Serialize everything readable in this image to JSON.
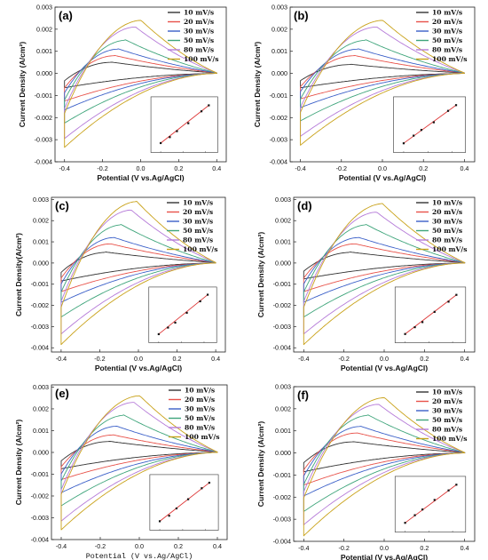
{
  "chart_data": [
    {
      "type": "line",
      "panel_label": "(a)",
      "xlabel": "Potential (V vs.Ag/AgCl)",
      "ylabel": "Current Density (A/cm²)",
      "xlim": [
        -0.45,
        0.45
      ],
      "ylim": [
        -0.004,
        0.003
      ],
      "xticks": [
        "-0.4",
        "-0.2",
        "0.0",
        "0.2",
        "0.4"
      ],
      "yticks": [
        "-0.004",
        "-0.003",
        "-0.002",
        "-0.001",
        "0.000",
        "0.001",
        "0.002",
        "0.003"
      ],
      "legend_position": "top-right",
      "series": [
        {
          "name": "10  mV/s",
          "color": "#333333",
          "anodic_peak": [
            -0.16,
            0.0005
          ],
          "cathodic_min": -0.0006
        },
        {
          "name": "20  mV/s",
          "color": "#e8524a",
          "anodic_peak": [
            -0.14,
            0.0008
          ],
          "cathodic_min": -0.0012
        },
        {
          "name": "30  mV/s",
          "color": "#3a5fc8",
          "anodic_peak": [
            -0.12,
            0.0011
          ],
          "cathodic_min": -0.0016
        },
        {
          "name": "50  mV/s",
          "color": "#3fa57b",
          "anodic_peak": [
            -0.08,
            0.0015
          ],
          "cathodic_min": -0.0022
        },
        {
          "name": "80  mV/s",
          "color": "#b57ad8",
          "anodic_peak": [
            -0.03,
            0.0021
          ],
          "cathodic_min": -0.0029
        },
        {
          "name": "100  mV/s",
          "color": "#c9a21a",
          "anodic_peak": [
            0.0,
            0.0024
          ],
          "cathodic_min": -0.0033
        }
      ],
      "inset": {
        "type": "scatter-line",
        "x": [
          0.1,
          0.141,
          0.173,
          0.224,
          0.283,
          0.316
        ],
        "y": [
          0.0005,
          0.0008,
          0.0011,
          0.0015,
          0.0021,
          0.0024
        ]
      }
    },
    {
      "type": "line",
      "panel_label": "(b)",
      "xlabel": "Potential (V vs.Ag/AgCl)",
      "ylabel": "Current Density (A/cm²)",
      "xlim": [
        -0.45,
        0.45
      ],
      "ylim": [
        -0.004,
        0.003
      ],
      "xticks": [
        "-0.4",
        "-0.2",
        "0.0",
        "0.2",
        "0.4"
      ],
      "yticks": [
        "-0.004",
        "-0.003",
        "-0.002",
        "-0.001",
        "0.000",
        "0.001",
        "0.002",
        "0.003"
      ],
      "legend_position": "top-right",
      "series": [
        {
          "name": "10  mV/s",
          "color": "#333333",
          "anodic_peak": [
            -0.16,
            0.0004
          ],
          "cathodic_min": -0.0006
        },
        {
          "name": "20  mV/s",
          "color": "#e8524a",
          "anodic_peak": [
            -0.14,
            0.0008
          ],
          "cathodic_min": -0.0011
        },
        {
          "name": "30  mV/s",
          "color": "#3a5fc8",
          "anodic_peak": [
            -0.12,
            0.0011
          ],
          "cathodic_min": -0.0015
        },
        {
          "name": "50  mV/s",
          "color": "#3fa57b",
          "anodic_peak": [
            -0.08,
            0.0015
          ],
          "cathodic_min": -0.0021
        },
        {
          "name": "80  mV/s",
          "color": "#b57ad8",
          "anodic_peak": [
            -0.03,
            0.0021
          ],
          "cathodic_min": -0.0028
        },
        {
          "name": "100  mV/s",
          "color": "#c9a21a",
          "anodic_peak": [
            0.0,
            0.0024
          ],
          "cathodic_min": -0.0032
        }
      ],
      "inset": {
        "type": "scatter-line",
        "x": [
          0.1,
          0.141,
          0.173,
          0.224,
          0.283,
          0.316
        ],
        "y": [
          0.0004,
          0.0008,
          0.0011,
          0.0015,
          0.0021,
          0.0024
        ]
      }
    },
    {
      "type": "line",
      "panel_label": "(c)",
      "xlabel": "Potential (V vs.Ag/AgCl)",
      "ylabel": "Current Density(A/cm²)",
      "xlim": [
        -0.45,
        0.45
      ],
      "ylim": [
        -0.0042,
        0.0031
      ],
      "xticks": [
        "-0.4",
        "-0.2",
        "0.0",
        "0.2",
        "0.4"
      ],
      "yticks": [
        "-0.004",
        "-0.003",
        "-0.002",
        "-0.001",
        "0.000",
        "0.001",
        "0.002",
        "0.003"
      ],
      "legend_position": "top-right",
      "series": [
        {
          "name": "10  mV/s",
          "color": "#333333",
          "anodic_peak": [
            -0.17,
            0.0005
          ],
          "cathodic_min": -0.0008
        },
        {
          "name": "20  mV/s",
          "color": "#e8524a",
          "anodic_peak": [
            -0.15,
            0.0009
          ],
          "cathodic_min": -0.0013
        },
        {
          "name": "30  mV/s",
          "color": "#3a5fc8",
          "anodic_peak": [
            -0.13,
            0.0012
          ],
          "cathodic_min": -0.0018
        },
        {
          "name": "50  mV/s",
          "color": "#3fa57b",
          "anodic_peak": [
            -0.09,
            0.0018
          ],
          "cathodic_min": -0.0025
        },
        {
          "name": "80  mV/s",
          "color": "#b57ad8",
          "anodic_peak": [
            -0.04,
            0.0025
          ],
          "cathodic_min": -0.0033
        },
        {
          "name": "100  mV/s",
          "color": "#c9a21a",
          "anodic_peak": [
            -0.01,
            0.0029
          ],
          "cathodic_min": -0.0038
        }
      ],
      "inset": {
        "type": "scatter-line",
        "x": [
          0.1,
          0.141,
          0.173,
          0.224,
          0.283,
          0.316
        ],
        "y": [
          0.0005,
          0.0009,
          0.0012,
          0.0018,
          0.0025,
          0.0029
        ]
      }
    },
    {
      "type": "line",
      "panel_label": "(d)",
      "xlabel": "Potential (V vs.Ag/AgCl)",
      "ylabel": "Current Density (A/cm²)",
      "xlim": [
        -0.45,
        0.45
      ],
      "ylim": [
        -0.0042,
        0.0031
      ],
      "xticks": [
        "-0.4",
        "-0.2",
        "0.0",
        "0.2",
        "0.4"
      ],
      "yticks": [
        "-0.004",
        "-0.003",
        "-0.002",
        "-0.001",
        "0.000",
        "0.001",
        "0.002",
        "0.003"
      ],
      "legend_position": "top-right",
      "series": [
        {
          "name": "10  mV/s",
          "color": "#333333",
          "anodic_peak": [
            -0.17,
            0.0005
          ],
          "cathodic_min": -0.0007
        },
        {
          "name": "20  mV/s",
          "color": "#e8524a",
          "anodic_peak": [
            -0.15,
            0.0009
          ],
          "cathodic_min": -0.0013
        },
        {
          "name": "30  mV/s",
          "color": "#3a5fc8",
          "anodic_peak": [
            -0.13,
            0.0012
          ],
          "cathodic_min": -0.0018
        },
        {
          "name": "50  mV/s",
          "color": "#3fa57b",
          "anodic_peak": [
            -0.09,
            0.0018
          ],
          "cathodic_min": -0.0025
        },
        {
          "name": "80  mV/s",
          "color": "#b57ad8",
          "anodic_peak": [
            -0.04,
            0.0024
          ],
          "cathodic_min": -0.0033
        },
        {
          "name": "100  mV/s",
          "color": "#c9a21a",
          "anodic_peak": [
            -0.01,
            0.0028
          ],
          "cathodic_min": -0.0038
        }
      ],
      "inset": {
        "type": "scatter-line",
        "x": [
          0.1,
          0.141,
          0.173,
          0.224,
          0.283,
          0.316
        ],
        "y": [
          0.0005,
          0.0009,
          0.0012,
          0.0018,
          0.0024,
          0.0028
        ]
      }
    },
    {
      "type": "line",
      "panel_label": "(e)",
      "xlabel": "Potential (V vs.Ag/AgCl)",
      "ylabel": "Current Density (A/cm²)",
      "xlim": [
        -0.45,
        0.45
      ],
      "ylim": [
        -0.004,
        0.0031
      ],
      "xticks": [
        "-0.4",
        "-0.2",
        "0.0",
        "0.2",
        "0.4"
      ],
      "yticks": [
        "-0.004",
        "-0.003",
        "-0.002",
        "-0.001",
        "0.000",
        "0.001",
        "0.002",
        "0.003"
      ],
      "legend_position": "top-right",
      "series": [
        {
          "name": "10  mV/s",
          "color": "#333333",
          "anodic_peak": [
            -0.16,
            0.0005
          ],
          "cathodic_min": -0.0007
        },
        {
          "name": "20  mV/s",
          "color": "#e8524a",
          "anodic_peak": [
            -0.14,
            0.0008
          ],
          "cathodic_min": -0.0012
        },
        {
          "name": "30  mV/s",
          "color": "#3a5fc8",
          "anodic_peak": [
            -0.12,
            0.0012
          ],
          "cathodic_min": -0.0018
        },
        {
          "name": "50  mV/s",
          "color": "#3fa57b",
          "anodic_peak": [
            -0.08,
            0.0017
          ],
          "cathodic_min": -0.0024
        },
        {
          "name": "80  mV/s",
          "color": "#b57ad8",
          "anodic_peak": [
            -0.03,
            0.0023
          ],
          "cathodic_min": -0.0031
        },
        {
          "name": "100  mV/s",
          "color": "#c9a21a",
          "anodic_peak": [
            0.0,
            0.0026
          ],
          "cathodic_min": -0.0035
        }
      ],
      "inset": {
        "type": "scatter-line",
        "x": [
          0.1,
          0.141,
          0.173,
          0.224,
          0.283,
          0.316
        ],
        "y": [
          0.0005,
          0.0008,
          0.0012,
          0.0017,
          0.0023,
          0.0026
        ]
      }
    },
    {
      "type": "line",
      "panel_label": "(f)",
      "xlabel": "Potential (V vs.Ag/AgCl)",
      "ylabel": "Current Density (A/cm²)",
      "xlim": [
        -0.45,
        0.45
      ],
      "ylim": [
        -0.004,
        0.003
      ],
      "xticks": [
        "-0.4",
        "-0.2",
        "0.0",
        "0.2",
        "0.4"
      ],
      "yticks": [
        "-0.004",
        "-0.003",
        "-0.002",
        "-0.001",
        "0.000",
        "0.001",
        "0.002",
        "0.003"
      ],
      "legend_position": "top-right",
      "series": [
        {
          "name": "10  mV/s",
          "color": "#333333",
          "anodic_peak": [
            -0.16,
            0.0005
          ],
          "cathodic_min": -0.0008
        },
        {
          "name": "20  mV/s",
          "color": "#e8524a",
          "anodic_peak": [
            -0.14,
            0.0009
          ],
          "cathodic_min": -0.0014
        },
        {
          "name": "30  mV/s",
          "color": "#3a5fc8",
          "anodic_peak": [
            -0.12,
            0.0012
          ],
          "cathodic_min": -0.0019
        },
        {
          "name": "50  mV/s",
          "color": "#3fa57b",
          "anodic_peak": [
            -0.08,
            0.0017
          ],
          "cathodic_min": -0.0026
        },
        {
          "name": "80  mV/s",
          "color": "#b57ad8",
          "anodic_peak": [
            -0.03,
            0.0022
          ],
          "cathodic_min": -0.0032
        },
        {
          "name": "100  mV/s",
          "color": "#c9a21a",
          "anodic_peak": [
            0.0,
            0.0025
          ],
          "cathodic_min": -0.0037
        }
      ],
      "inset": {
        "type": "scatter-line",
        "x": [
          0.1,
          0.141,
          0.173,
          0.224,
          0.283,
          0.316
        ],
        "y": [
          0.0005,
          0.0009,
          0.0012,
          0.0017,
          0.0022,
          0.0025
        ]
      }
    }
  ]
}
